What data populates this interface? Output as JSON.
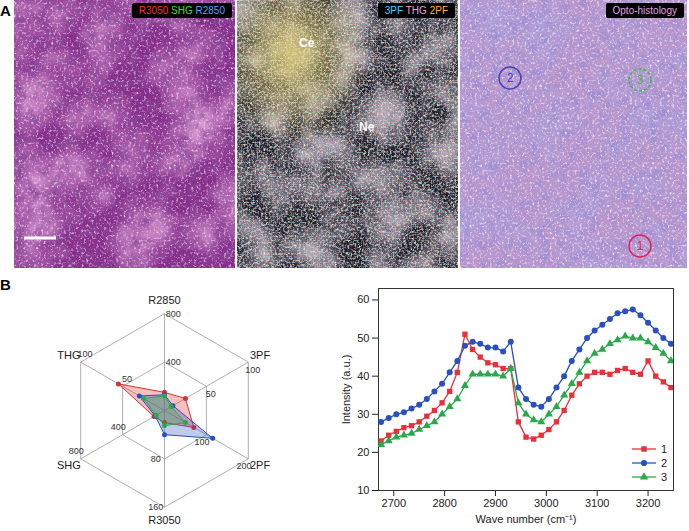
{
  "panel_a": {
    "label": "A",
    "images": [
      {
        "header": [
          {
            "text": "R3050",
            "color": "#ff3030"
          },
          {
            "text": "SHG",
            "color": "#30e030"
          },
          {
            "text": "R2850",
            "color": "#4aa8ff"
          }
        ]
      },
      {
        "header": [
          {
            "text": "3PF",
            "color": "#40d8ff"
          },
          {
            "text": "THG",
            "color": "#e8a0e8"
          },
          {
            "text": "2PF",
            "color": "#ffb030"
          }
        ],
        "annotations": [
          "Ce",
          "Ne"
        ]
      },
      {
        "header": [
          {
            "text": "Opto-histology",
            "color": "#e0a8e0"
          }
        ],
        "regions": [
          {
            "label": "1",
            "color": "#e0205a"
          },
          {
            "label": "2",
            "color": "#4a40b8"
          },
          {
            "label": "3",
            "color": "#40b840"
          }
        ]
      }
    ]
  },
  "panel_b": {
    "label": "B"
  },
  "chart_data": [
    {
      "type": "radar",
      "axes": [
        {
          "name": "R2850",
          "lim": [
            0,
            800
          ],
          "ticks": [
            400,
            800
          ]
        },
        {
          "name": "3PF",
          "lim": [
            0,
            100
          ],
          "ticks": [
            50,
            100
          ]
        },
        {
          "name": "2PF",
          "lim": [
            0,
            200
          ],
          "ticks": [
            100,
            200
          ]
        },
        {
          "name": "R3050",
          "lim": [
            0,
            160
          ],
          "ticks": [
            80,
            160
          ]
        },
        {
          "name": "SHG",
          "lim": [
            0,
            800
          ],
          "ticks": [
            400,
            800
          ]
        },
        {
          "name": "THG",
          "lim": [
            0,
            100
          ],
          "ticks": [
            50,
            100
          ]
        }
      ],
      "series": [
        {
          "color": "#e03030",
          "values": [
            150,
            25,
            70,
            20,
            100,
            55
          ]
        },
        {
          "color": "#2a4fc0",
          "values": [
            130,
            10,
            115,
            40,
            90,
            30
          ]
        },
        {
          "color": "#2aa84a",
          "values": [
            120,
            8,
            50,
            25,
            80,
            25
          ]
        }
      ]
    },
    {
      "type": "line",
      "x_label": "Wave number (cm⁻¹)",
      "y_label": "Intensity (a.u.)",
      "x": [
        2675,
        2690,
        2705,
        2720,
        2735,
        2750,
        2765,
        2780,
        2795,
        2810,
        2825,
        2840,
        2855,
        2870,
        2885,
        2900,
        2915,
        2930,
        2945,
        2960,
        2975,
        2990,
        3005,
        3020,
        3035,
        3050,
        3065,
        3080,
        3095,
        3110,
        3125,
        3140,
        3155,
        3170,
        3185,
        3200,
        3215,
        3230,
        3245
      ],
      "series": [
        {
          "name": "1",
          "color": "#e8303a",
          "marker": "square",
          "values": [
            23,
            24.5,
            25.5,
            26.5,
            27,
            28,
            29.5,
            31,
            33,
            36,
            41,
            51,
            47,
            45,
            43.5,
            43,
            42,
            42,
            28,
            24,
            23.5,
            24.5,
            26,
            28,
            31,
            35,
            38,
            40,
            41,
            41,
            40.5,
            41.5,
            42,
            41,
            40.5,
            44,
            40,
            38.5,
            37
          ]
        },
        {
          "name": "2",
          "color": "#2a4fc0",
          "marker": "circle",
          "values": [
            28,
            29,
            30,
            30.5,
            31.5,
            32.5,
            34,
            36,
            38,
            41,
            44,
            48,
            49,
            48.5,
            47.5,
            47.5,
            46.5,
            49,
            37,
            34,
            32.5,
            32,
            34,
            37,
            40,
            44,
            47,
            50,
            52,
            53.5,
            55,
            56.5,
            57,
            57.5,
            56,
            54,
            52,
            50,
            48.5
          ]
        },
        {
          "name": "3",
          "color": "#2aa84a",
          "marker": "triangle",
          "values": [
            22,
            23,
            24,
            24.5,
            25,
            26,
            27,
            28,
            30,
            32,
            34,
            37.5,
            40.5,
            40.5,
            40.5,
            40.5,
            40,
            42,
            33,
            30,
            28.5,
            28,
            30,
            32,
            35,
            38,
            41,
            44,
            46,
            47,
            48.5,
            49.5,
            50.5,
            50,
            50,
            49,
            47.5,
            46,
            44
          ]
        }
      ],
      "xlim": [
        2670,
        3250
      ],
      "xticks": [
        2700,
        2800,
        2900,
        3000,
        3100,
        3200
      ],
      "ylim": [
        10,
        63
      ],
      "yticks": [
        10,
        20,
        30,
        40,
        50,
        60
      ],
      "legend": "bottom-right"
    }
  ]
}
